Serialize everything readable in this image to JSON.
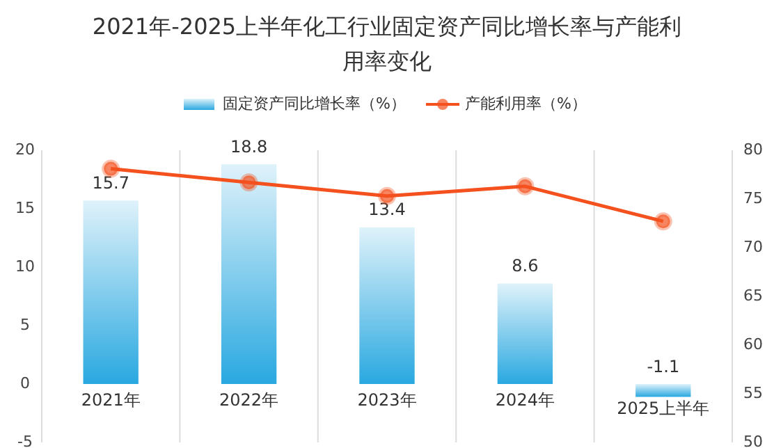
{
  "chart_data": {
    "type": "bar",
    "title": "2021年-2025上半年化工行业固定资产同比增长率与产能利用率变化",
    "categories": [
      "2021年",
      "2022年",
      "2023年",
      "2024年",
      "2025上半年"
    ],
    "series": [
      {
        "name": "固定资产同比增长率（%）",
        "color": "#29a8e0",
        "values": [
          15.7,
          18.8,
          13.4,
          8.6,
          -1.1
        ],
        "value_labels": [
          "15.7",
          "18.8",
          "13.4",
          "8.6",
          "-1.1"
        ]
      },
      {
        "name": "产能利用率（%）",
        "type": "line",
        "axis": "y2",
        "color": "#f4511e",
        "marker": "circle",
        "values": [
          78.1,
          76.7,
          75.3,
          76.3,
          72.7
        ]
      }
    ],
    "ylim": [
      -5,
      20
    ],
    "yticks": [
      -5,
      0,
      5,
      10,
      15,
      20
    ],
    "y2lim": [
      50,
      80
    ],
    "y2ticks": [
      50,
      55,
      60,
      65,
      70,
      75,
      80
    ],
    "grid": "x",
    "legend": "top"
  }
}
